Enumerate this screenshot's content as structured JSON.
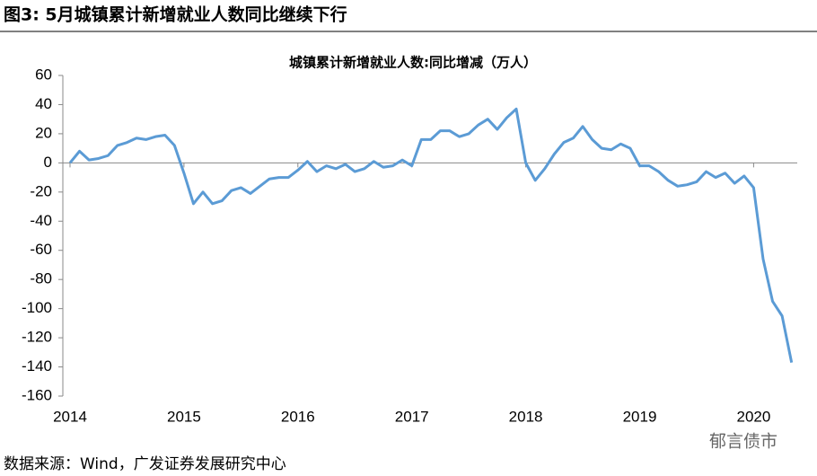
{
  "header": {
    "title": "图3:  5月城镇累计新增就业人数同比继续下行"
  },
  "chart_data": {
    "type": "line",
    "title": "城镇累计新增就业人数:同比增减（万人）",
    "categories": [
      "2014",
      null,
      null,
      null,
      null,
      null,
      null,
      null,
      null,
      null,
      null,
      null,
      "2015",
      null,
      null,
      null,
      null,
      null,
      null,
      null,
      null,
      null,
      null,
      null,
      "2016",
      null,
      null,
      null,
      null,
      null,
      null,
      null,
      null,
      null,
      null,
      null,
      "2017",
      null,
      null,
      null,
      null,
      null,
      null,
      null,
      null,
      null,
      null,
      null,
      "2018",
      null,
      null,
      null,
      null,
      null,
      null,
      null,
      null,
      null,
      null,
      null,
      "2019",
      null,
      null,
      null,
      null,
      null,
      null,
      null,
      null,
      null,
      null,
      null,
      "2020",
      null,
      null,
      null,
      null
    ],
    "series": [
      {
        "color": "#5b9bd5",
        "values": [
          0,
          8,
          2,
          3,
          5,
          12,
          14,
          17,
          16,
          18,
          19,
          12,
          -7,
          -28,
          -20,
          -28,
          -26,
          -19,
          -17,
          -21,
          -16,
          -11,
          -10,
          -10,
          -5,
          1,
          -6,
          -2,
          -4,
          -1,
          -6,
          -4,
          1,
          -3,
          -2,
          2,
          -2,
          16,
          16,
          22,
          22,
          18,
          20,
          26,
          30,
          23,
          31,
          37,
          0,
          -12,
          -4,
          6,
          14,
          17,
          25,
          16,
          10,
          9,
          13,
          10,
          -2,
          -2,
          -6,
          -12,
          -16,
          -15,
          -13,
          -6,
          -10,
          -7,
          -14,
          -9,
          -17,
          -66,
          -95,
          -105,
          -137
        ]
      }
    ],
    "ylim": [
      -160,
      60
    ],
    "yticks": [
      -160,
      -140,
      -120,
      -100,
      -80,
      -60,
      -40,
      -20,
      0,
      20,
      40,
      60
    ]
  },
  "footer": {
    "source": "数据来源：Wind，广发证券发展研究中心",
    "watermark": "郁言债市"
  }
}
